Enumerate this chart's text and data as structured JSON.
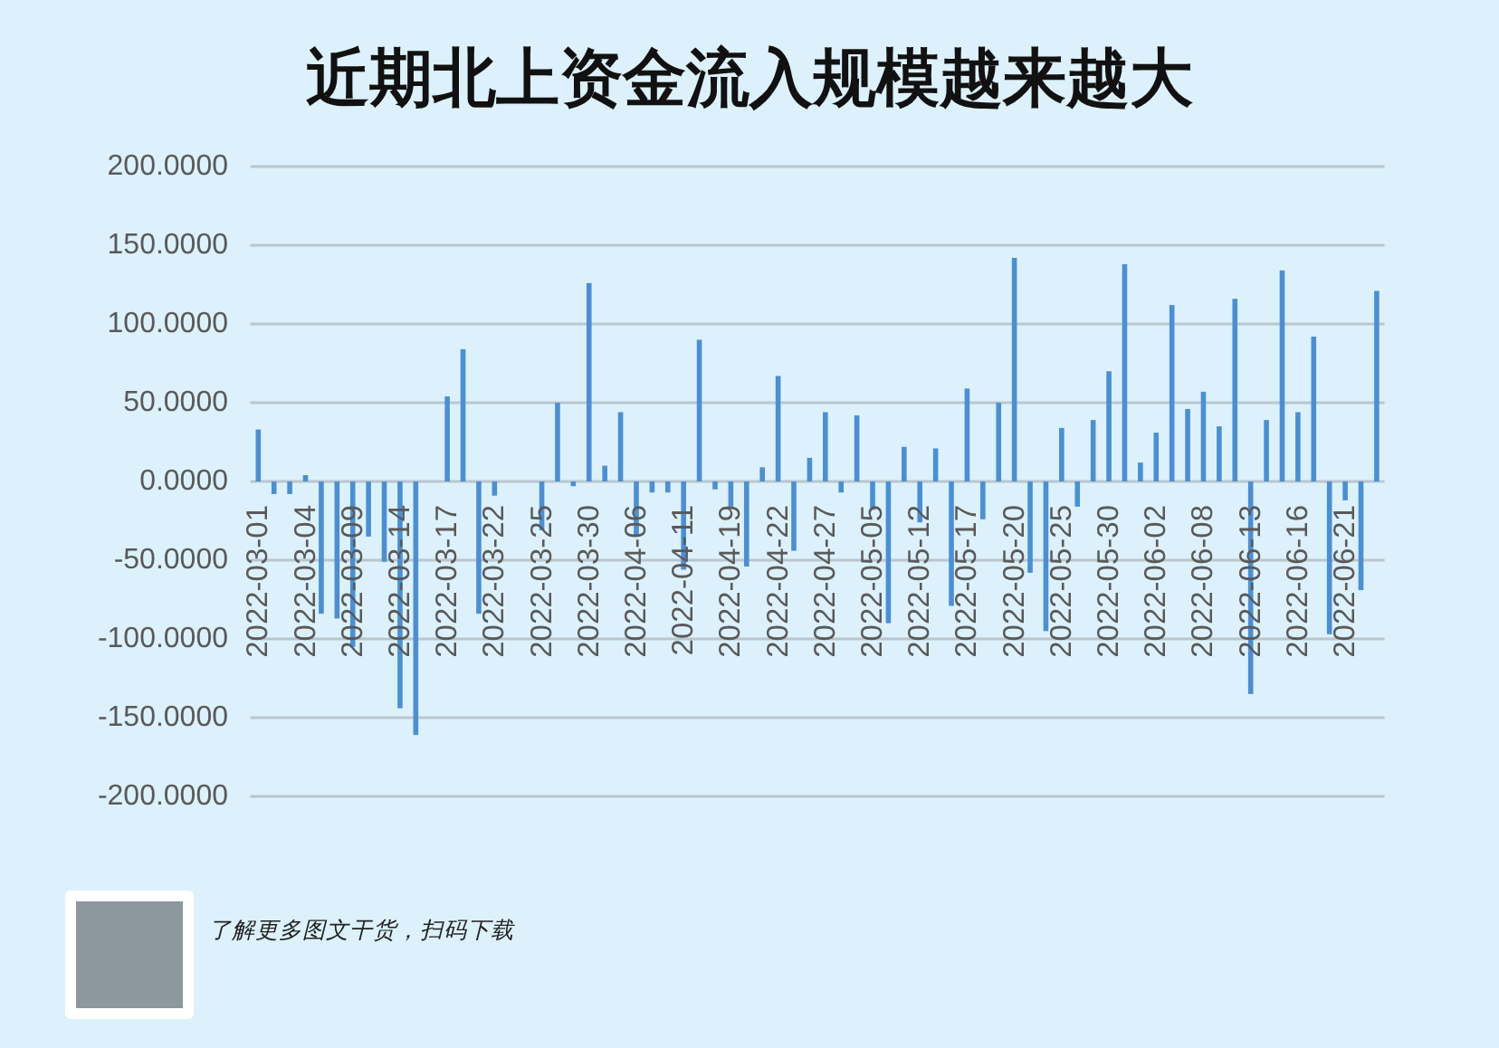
{
  "chart_data": {
    "type": "bar",
    "title": "近期北上资金流入规模越来越大",
    "categories": [
      "2022-03-01",
      null,
      null,
      "2022-03-04",
      null,
      null,
      "2022-03-09",
      null,
      null,
      "2022-03-14",
      null,
      null,
      "2022-03-17",
      null,
      null,
      "2022-03-22",
      null,
      null,
      "2022-03-25",
      null,
      null,
      "2022-03-30",
      null,
      null,
      "2022-04-06",
      null,
      null,
      "2022-04-11",
      null,
      null,
      "2022-04-19",
      null,
      null,
      "2022-04-22",
      null,
      null,
      "2022-04-27",
      null,
      null,
      "2022-05-05",
      null,
      null,
      "2022-05-12",
      null,
      null,
      "2022-05-17",
      null,
      null,
      "2022-05-20",
      null,
      null,
      "2022-05-25",
      null,
      null,
      "2022-05-30",
      null,
      null,
      "2022-06-02",
      null,
      null,
      "2022-06-08",
      null,
      null,
      "2022-06-13",
      null,
      null,
      "2022-06-16",
      null,
      null,
      "2022-06-21",
      null,
      null
    ],
    "values": [
      33,
      -8,
      -8,
      4,
      -84,
      -87,
      -105,
      -35,
      -51,
      -144,
      -161,
      null,
      54,
      84,
      -84,
      -9,
      null,
      null,
      -31,
      50,
      -3,
      126,
      10,
      44,
      -35,
      -7,
      -7,
      -56,
      90,
      -5,
      -16,
      -54,
      9,
      67,
      -44,
      15,
      44,
      -7,
      42,
      -18,
      -90,
      22,
      -26,
      21,
      -79,
      59,
      -24,
      50,
      142,
      -58,
      -95,
      34,
      -16,
      39,
      70,
      138,
      12,
      31,
      112,
      46,
      57,
      35,
      116,
      -135,
      39,
      134,
      44,
      92,
      -97,
      -12,
      -69,
      121
    ],
    "color": "#4a8fd6",
    "ylim": [
      -200,
      200
    ],
    "yticks": [
      {
        "value": -200,
        "label": "-200.0000"
      },
      {
        "value": -150,
        "label": "-150.0000"
      },
      {
        "value": -100,
        "label": "-100.0000"
      },
      {
        "value": -50,
        "label": "-50.0000"
      },
      {
        "value": 0,
        "label": "0.0000"
      },
      {
        "value": 50,
        "label": "50.0000"
      },
      {
        "value": 100,
        "label": "100.0000"
      },
      {
        "value": 150,
        "label": "150.0000"
      },
      {
        "value": 200,
        "label": "200.0000"
      }
    ],
    "grid": "y",
    "annotations": [
      "了解更多图文干货，扫码下载"
    ]
  }
}
